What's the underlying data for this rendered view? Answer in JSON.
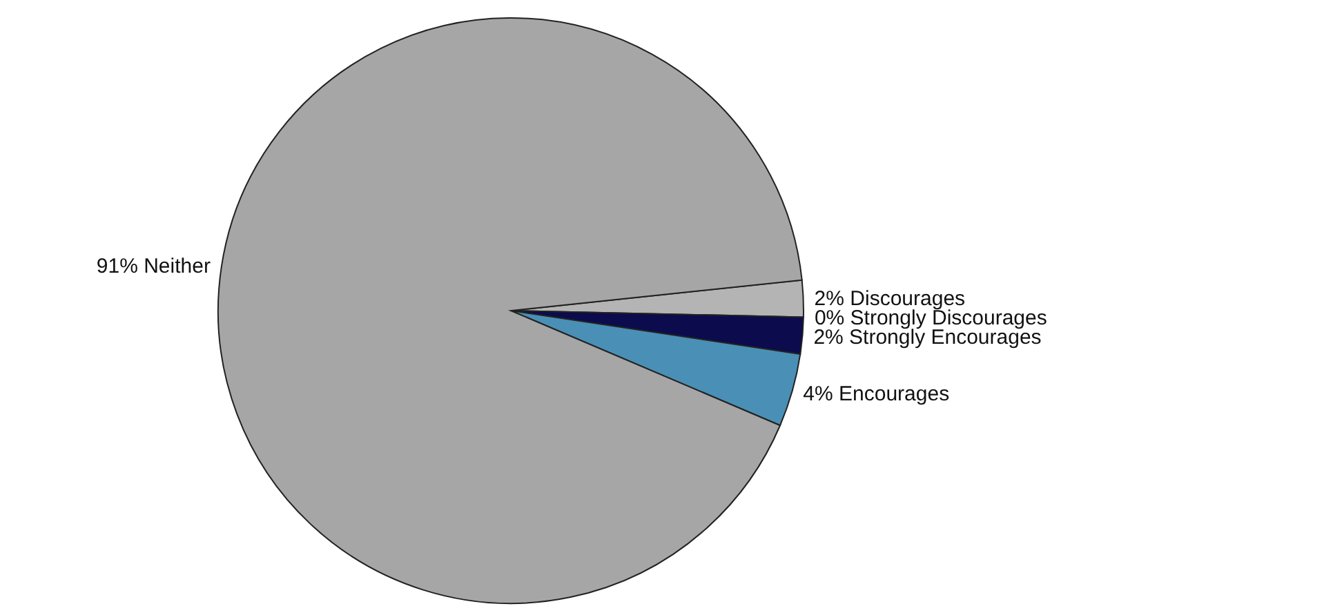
{
  "chart_data": {
    "type": "pie",
    "categories": [
      "Discourages",
      "Strongly Discourages",
      "Strongly Encourages",
      "Encourages",
      "Neither"
    ],
    "values": [
      2,
      0,
      2,
      4,
      91
    ],
    "colors": [
      "#b4b4b4",
      "#e0e0e0",
      "#0b0b4e",
      "#4a8fb5",
      "#a6a6a6"
    ],
    "value_labels": [
      "2%",
      "0%",
      "2%",
      "4%",
      "91%"
    ]
  }
}
